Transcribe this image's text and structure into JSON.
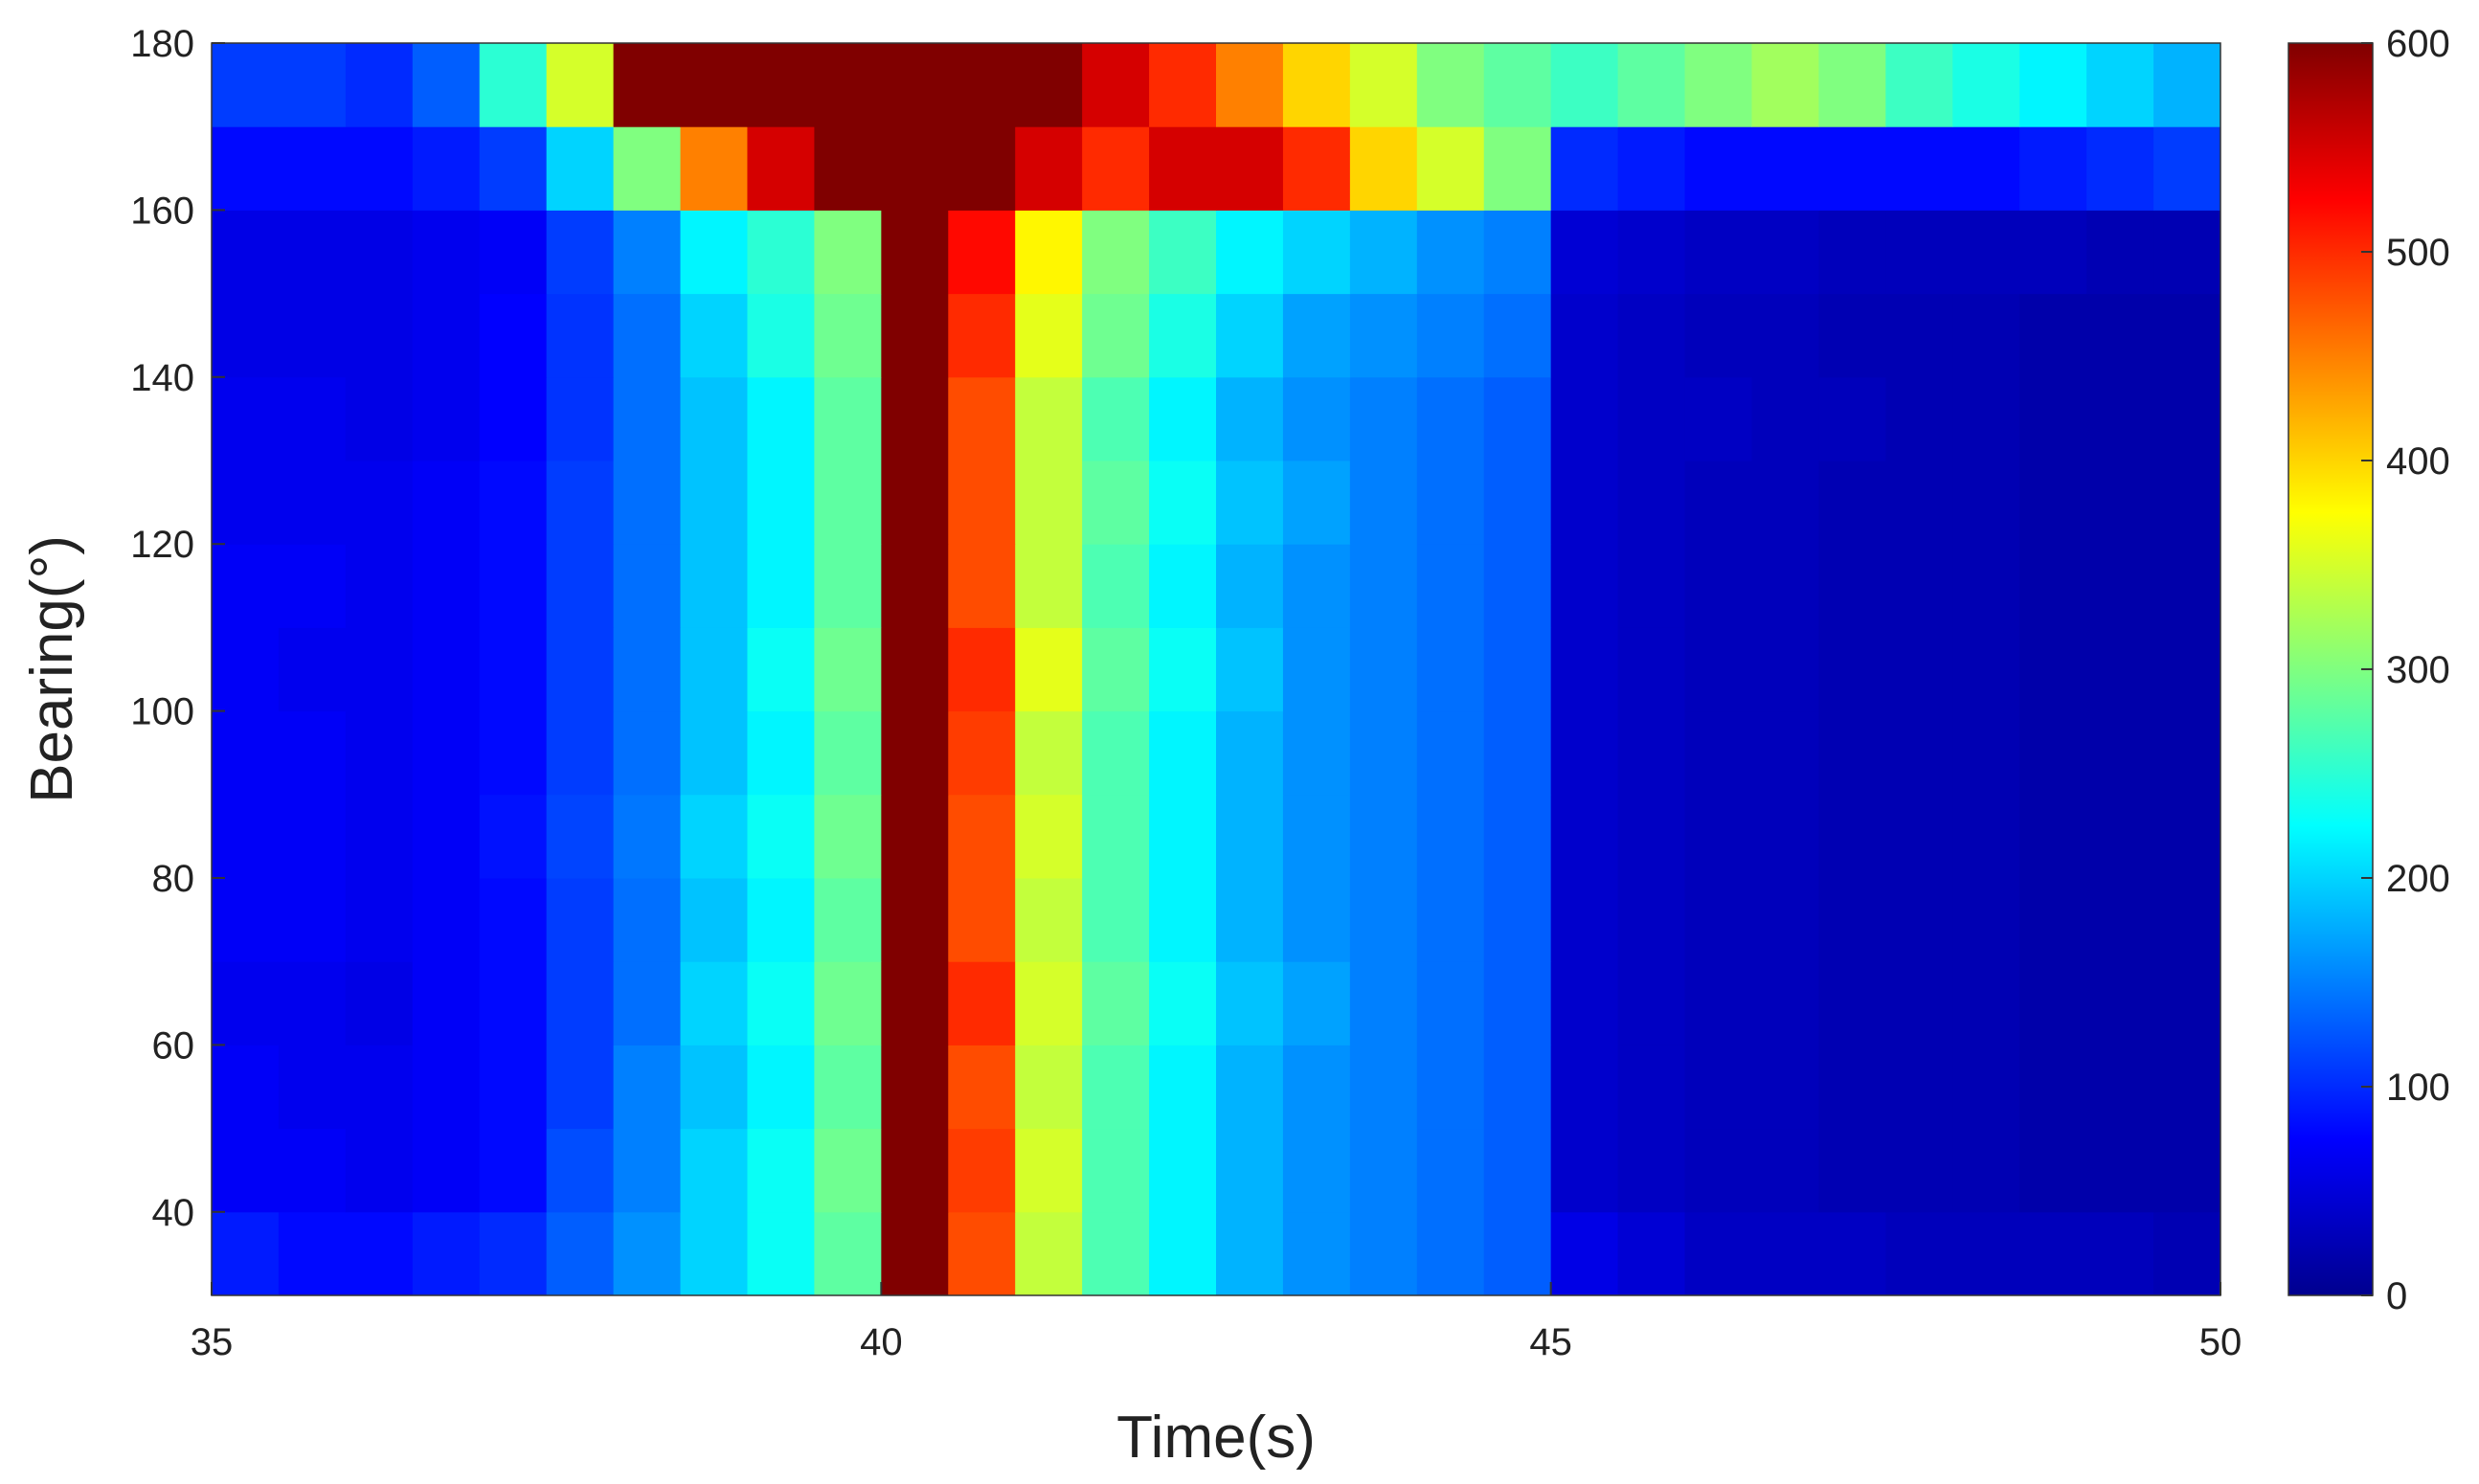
{
  "chart_data": {
    "type": "heatmap",
    "xlabel": "Time(s)",
    "ylabel": "Bearing(°)",
    "x": [
      35.25,
      35.75,
      36.25,
      36.75,
      37.25,
      37.75,
      38.25,
      38.75,
      39.25,
      39.75,
      40.25,
      40.75,
      41.25,
      41.75,
      42.25,
      42.75,
      43.25,
      43.75,
      44.25,
      44.75,
      45.25,
      45.75,
      46.25,
      46.75,
      47.25,
      47.75,
      48.25,
      48.75,
      49.25,
      49.75
    ],
    "y": [
      35,
      45,
      55,
      65,
      75,
      85,
      95,
      105,
      115,
      125,
      135,
      145,
      155,
      165,
      175
    ],
    "z": [
      [
        90,
        80,
        80,
        90,
        100,
        130,
        160,
        200,
        230,
        280,
        600,
        480,
        340,
        270,
        220,
        180,
        160,
        150,
        140,
        130,
        60,
        50,
        40,
        40,
        40,
        35,
        35,
        35,
        35,
        30
      ],
      [
        70,
        70,
        65,
        70,
        80,
        120,
        150,
        200,
        230,
        290,
        600,
        490,
        350,
        270,
        220,
        180,
        160,
        150,
        140,
        130,
        45,
        40,
        35,
        35,
        30,
        30,
        30,
        25,
        25,
        25
      ],
      [
        70,
        65,
        65,
        70,
        80,
        110,
        150,
        190,
        220,
        280,
        600,
        480,
        340,
        270,
        220,
        180,
        160,
        150,
        140,
        130,
        45,
        40,
        35,
        35,
        30,
        30,
        30,
        25,
        25,
        25
      ],
      [
        65,
        65,
        60,
        70,
        80,
        110,
        140,
        200,
        230,
        290,
        600,
        500,
        350,
        280,
        230,
        190,
        170,
        150,
        140,
        130,
        45,
        40,
        35,
        35,
        30,
        30,
        30,
        25,
        25,
        25
      ],
      [
        70,
        70,
        65,
        70,
        80,
        110,
        140,
        190,
        220,
        280,
        600,
        480,
        340,
        270,
        220,
        180,
        160,
        150,
        140,
        130,
        45,
        40,
        35,
        35,
        30,
        30,
        30,
        25,
        25,
        25
      ],
      [
        70,
        70,
        65,
        70,
        85,
        115,
        145,
        200,
        230,
        290,
        600,
        480,
        350,
        270,
        220,
        180,
        160,
        150,
        140,
        130,
        45,
        40,
        35,
        35,
        30,
        30,
        30,
        25,
        25,
        25
      ],
      [
        70,
        70,
        65,
        70,
        80,
        110,
        140,
        190,
        220,
        280,
        600,
        490,
        340,
        270,
        220,
        180,
        160,
        150,
        140,
        130,
        45,
        40,
        35,
        35,
        30,
        30,
        30,
        25,
        25,
        25
      ],
      [
        70,
        65,
        65,
        70,
        80,
        110,
        140,
        190,
        230,
        290,
        600,
        500,
        360,
        280,
        230,
        190,
        160,
        150,
        140,
        130,
        45,
        40,
        35,
        35,
        30,
        30,
        30,
        25,
        25,
        25
      ],
      [
        70,
        70,
        65,
        70,
        80,
        110,
        140,
        190,
        220,
        280,
        600,
        480,
        340,
        270,
        220,
        180,
        160,
        150,
        140,
        130,
        45,
        40,
        35,
        35,
        30,
        30,
        30,
        25,
        25,
        25
      ],
      [
        65,
        65,
        65,
        70,
        80,
        110,
        140,
        190,
        220,
        280,
        600,
        480,
        340,
        280,
        230,
        190,
        170,
        150,
        140,
        130,
        45,
        40,
        35,
        35,
        30,
        30,
        30,
        25,
        25,
        25
      ],
      [
        65,
        65,
        60,
        65,
        75,
        105,
        140,
        190,
        220,
        280,
        600,
        480,
        340,
        270,
        220,
        180,
        160,
        150,
        140,
        130,
        45,
        40,
        40,
        35,
        35,
        30,
        30,
        25,
        25,
        25
      ],
      [
        60,
        60,
        60,
        65,
        75,
        105,
        140,
        200,
        240,
        290,
        600,
        500,
        360,
        290,
        240,
        200,
        170,
        160,
        150,
        140,
        45,
        40,
        35,
        35,
        30,
        30,
        30,
        25,
        25,
        25
      ],
      [
        60,
        60,
        60,
        65,
        70,
        110,
        150,
        220,
        250,
        300,
        600,
        520,
        380,
        300,
        260,
        220,
        200,
        180,
        160,
        150,
        50,
        45,
        40,
        40,
        35,
        35,
        35,
        35,
        30,
        30
      ],
      [
        80,
        80,
        80,
        90,
        110,
        200,
        300,
        450,
        550,
        600,
        600,
        600,
        550,
        500,
        550,
        550,
        500,
        400,
        350,
        300,
        100,
        90,
        80,
        80,
        80,
        80,
        80,
        90,
        100,
        110
      ],
      [
        110,
        110,
        100,
        130,
        250,
        350,
        600,
        600,
        600,
        600,
        600,
        600,
        600,
        550,
        500,
        450,
        400,
        350,
        300,
        280,
        260,
        280,
        300,
        320,
        300,
        260,
        240,
        220,
        200,
        180
      ]
    ],
    "xlim": [
      35,
      50
    ],
    "ylim": [
      30,
      180
    ],
    "xticks": [
      35,
      40,
      45,
      50
    ],
    "yticks": [
      40,
      60,
      80,
      100,
      120,
      140,
      160,
      180
    ],
    "clim": [
      0,
      600
    ],
    "cticks": [
      0,
      100,
      200,
      300,
      400,
      500,
      600
    ],
    "colormap": "jet"
  }
}
